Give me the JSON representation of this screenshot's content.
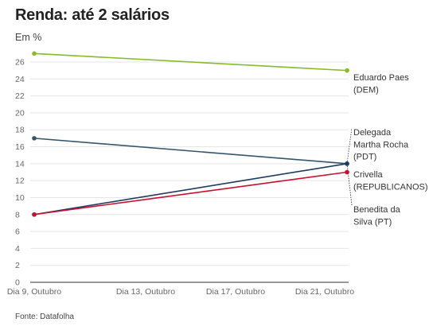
{
  "chart_data": {
    "type": "line",
    "title": "Renda: até 2 salários",
    "ylabel": "Em %",
    "source": "Fonte: Datafolha",
    "categories": [
      "Dia 9, Outubro",
      "Dia 13, Outubro",
      "Dia 17, Outubro",
      "Dia 21, Outubro"
    ],
    "ylim": [
      0,
      27
    ],
    "yticks": [
      0,
      2,
      4,
      6,
      8,
      10,
      12,
      14,
      16,
      18,
      20,
      22,
      24,
      26
    ],
    "grid": true,
    "series": [
      {
        "name": "Eduardo Paes (DEM)",
        "label_lines": [
          "Eduardo Paes",
          "(DEM)"
        ],
        "color": "#86bc25",
        "points": [
          {
            "x": "Dia 9, Outubro",
            "y": 27
          },
          {
            "x": "Dia 21, Outubro",
            "y": 25
          }
        ]
      },
      {
        "name": "Delegada Martha Rocha (PDT)",
        "label_lines": [
          "Delegada",
          "Martha Rocha",
          "(PDT)"
        ],
        "color": "#34556b",
        "points": [
          {
            "x": "Dia 9, Outubro",
            "y": 17
          },
          {
            "x": "Dia 21, Outubro",
            "y": 14
          }
        ]
      },
      {
        "name": "Crivella (REPUBLICANOS)",
        "label_lines": [
          "Crivella",
          "(REPUBLICANOS)"
        ],
        "color": "#c8102e",
        "points": [
          {
            "x": "Dia 9, Outubro",
            "y": 8
          },
          {
            "x": "Dia 21, Outubro",
            "y": 13
          }
        ]
      },
      {
        "name": "Benedita da Silva (PT)",
        "label_lines": [
          "Benedita da",
          "Silva (PT)"
        ],
        "color": "#1f3a60",
        "points": [
          {
            "x": "Dia 9, Outubro",
            "y": 8
          },
          {
            "x": "Dia 21, Outubro",
            "y": 14
          }
        ]
      }
    ]
  }
}
